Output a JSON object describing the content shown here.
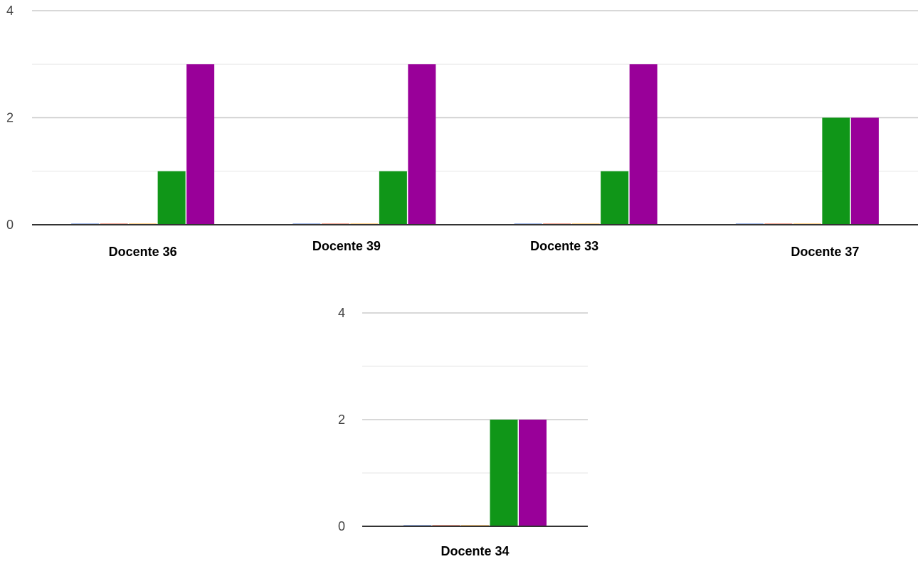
{
  "chart_data": [
    {
      "type": "bar",
      "categories": [
        "Docente 36",
        "Docente 39",
        "Docente 33",
        "Docente 37"
      ],
      "series": [
        {
          "values": [
            0,
            0,
            0,
            0
          ]
        },
        {
          "values": [
            0,
            0,
            0,
            0
          ]
        },
        {
          "values": [
            0,
            0,
            0,
            0
          ]
        },
        {
          "values": [
            1,
            1,
            1,
            2
          ]
        },
        {
          "values": [
            3,
            3,
            3,
            2
          ]
        }
      ],
      "y_ticks": [
        "0",
        "2",
        "4"
      ],
      "ylim": [
        0,
        4
      ],
      "grid": true
    },
    {
      "type": "bar",
      "categories": [
        "Docente 34"
      ],
      "series": [
        {
          "values": [
            0
          ]
        },
        {
          "values": [
            0
          ]
        },
        {
          "values": [
            0
          ]
        },
        {
          "values": [
            2
          ]
        },
        {
          "values": [
            2
          ]
        }
      ],
      "y_ticks": [
        "0",
        "2",
        "4"
      ],
      "ylim": [
        0,
        4
      ],
      "grid": true
    }
  ],
  "colors": {
    "series": [
      "#3366cc",
      "#dc3912",
      "#ff9900",
      "#109618",
      "#990099"
    ],
    "gridline_major": "#cccccc",
    "gridline_minor": "#ebebeb",
    "baseline": "#333333"
  }
}
